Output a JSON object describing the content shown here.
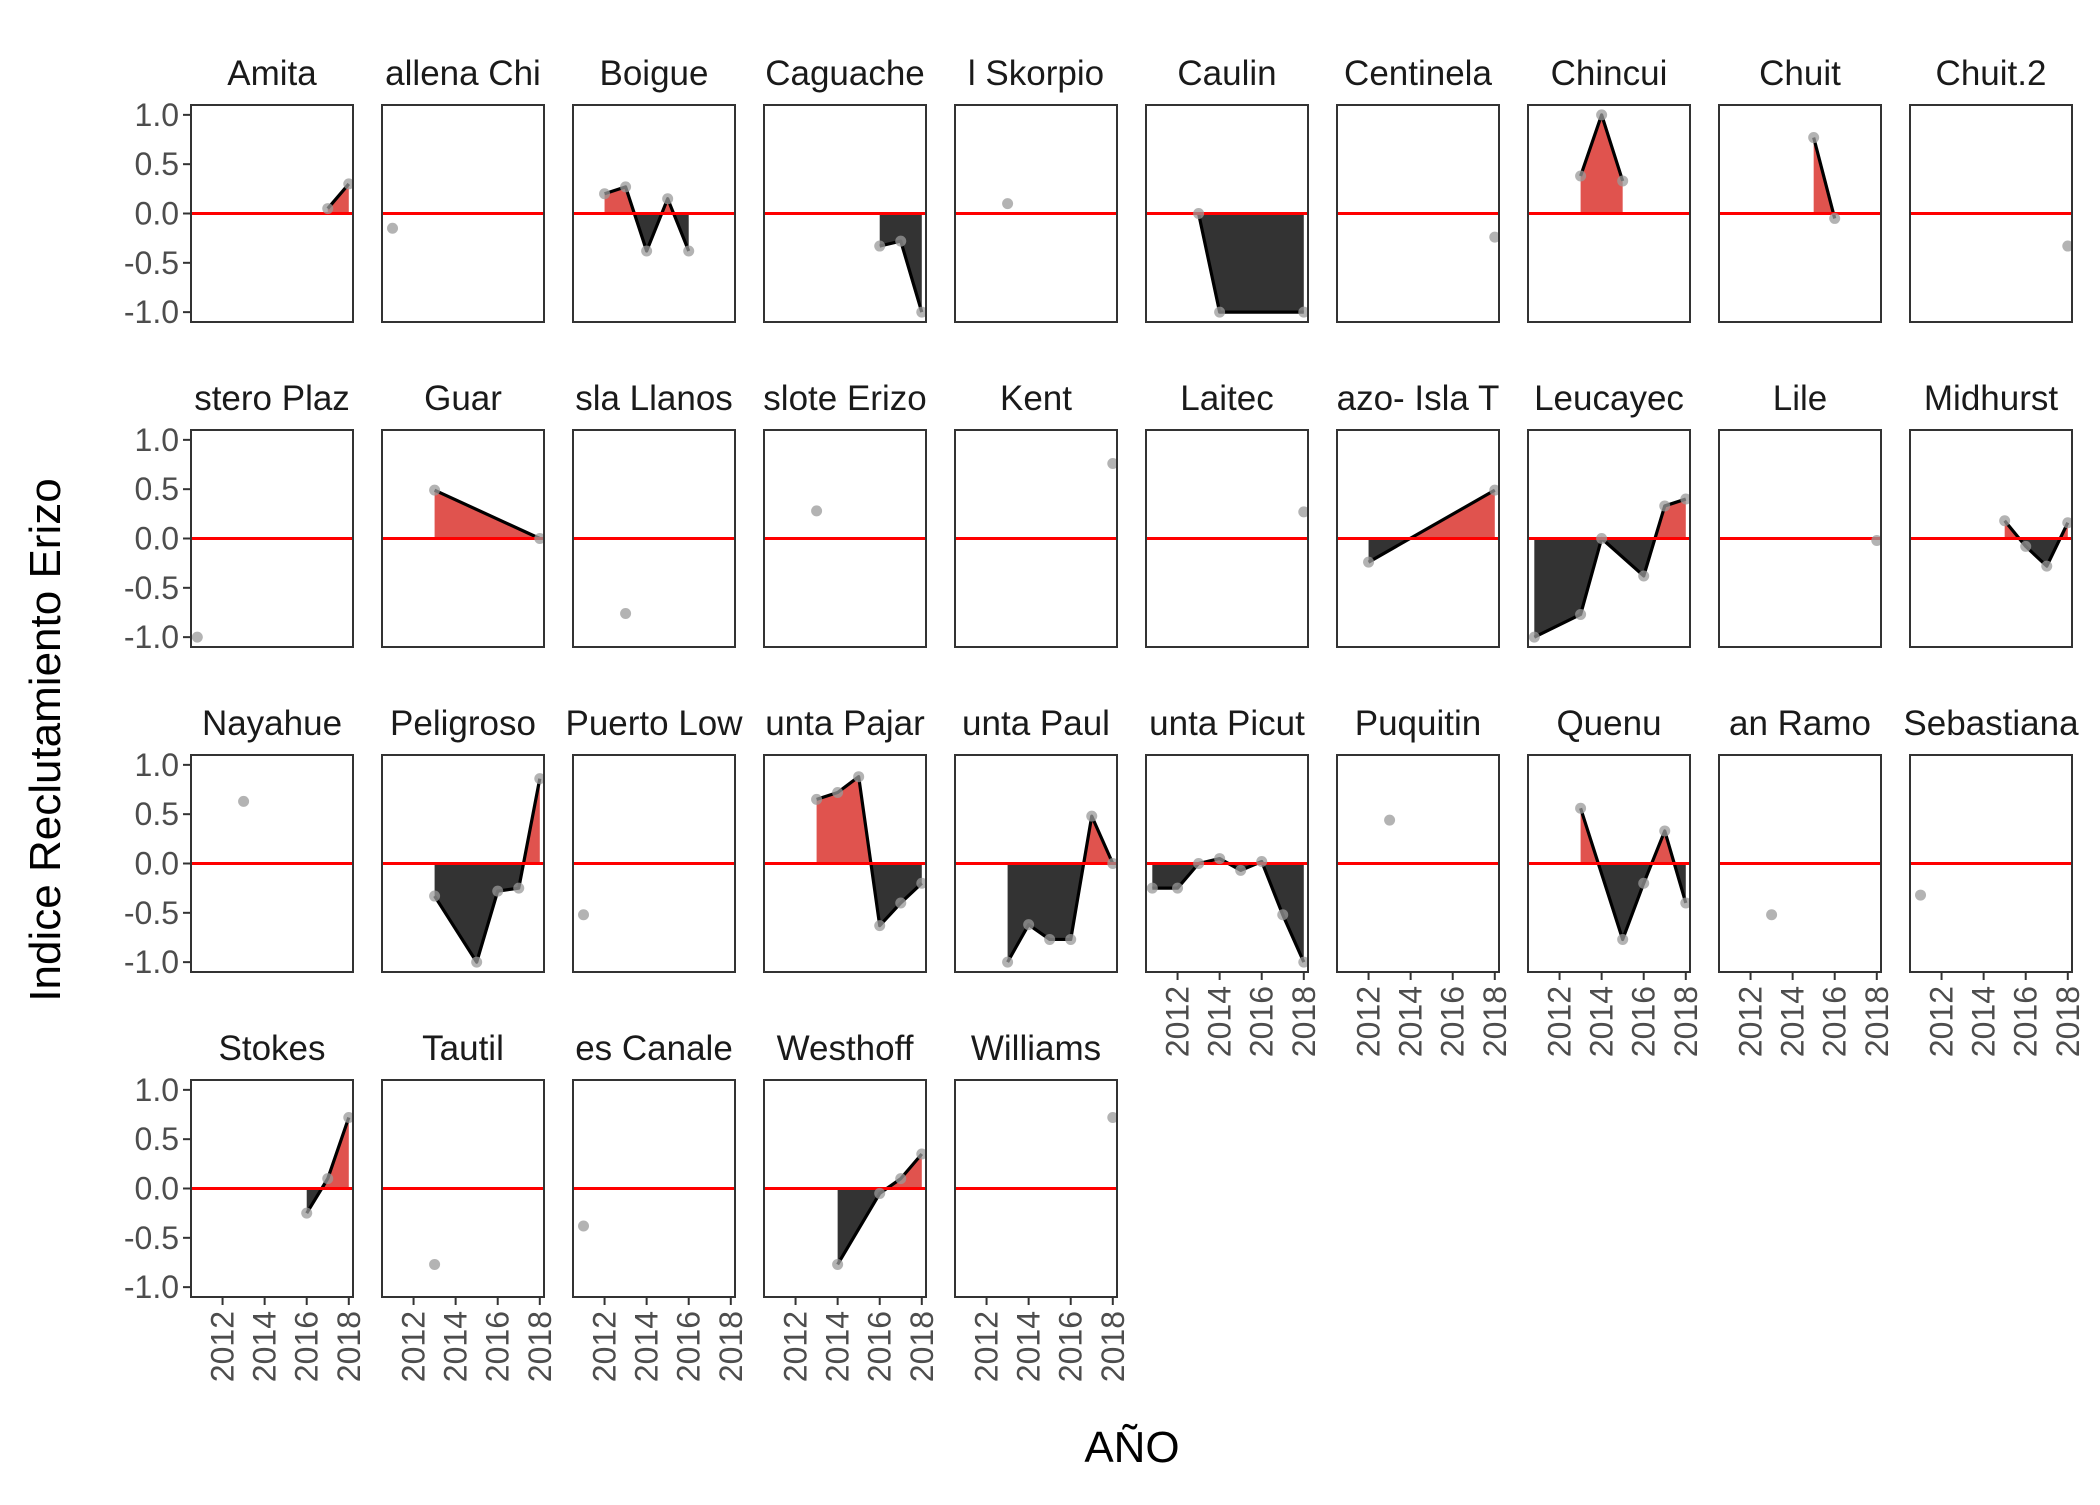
{
  "chart_data": {
    "type": "area",
    "facet_layout": {
      "ncol": 10,
      "nrow": 4,
      "scales": "fixed"
    },
    "xlabel": "AÑO",
    "ylabel": "Indice Reclutamiento Erizo",
    "xlim": [
      2010.5,
      2018.2
    ],
    "ylim": [
      -1.1,
      1.1
    ],
    "x_ticks": [
      "2012",
      "2014",
      "2016",
      "2018"
    ],
    "x_tick_values": [
      2012,
      2014,
      2016,
      2018
    ],
    "y_ticks": [
      "1.0",
      "0.5",
      "0.0",
      "-0.5",
      "-1.0"
    ],
    "y_tick_values": [
      1.0,
      0.5,
      0.0,
      -0.5,
      -1.0
    ],
    "colors": {
      "positive_fill": "#e0534e",
      "negative_fill": "#333333",
      "zero_line": "#ff0000",
      "series_line": "#000000",
      "points": "#999999",
      "panel_border": "#333333"
    },
    "panels": [
      {
        "title": "Amita",
        "x": [
          2017,
          2018
        ],
        "y": [
          0.05,
          0.3
        ]
      },
      {
        "title": "allena Chi",
        "x": [
          2011
        ],
        "y": [
          -0.15
        ]
      },
      {
        "title": "Boigue",
        "x": [
          2012,
          2013,
          2014,
          2015,
          2016
        ],
        "y": [
          0.2,
          0.27,
          -0.38,
          0.15,
          -0.38
        ]
      },
      {
        "title": "Caguache",
        "x": [
          2016,
          2017,
          2018
        ],
        "y": [
          -0.33,
          -0.28,
          -1.0
        ]
      },
      {
        "title": "l Skorpio",
        "x": [
          2013
        ],
        "y": [
          0.1
        ]
      },
      {
        "title": "Caulin",
        "x": [
          2013,
          2014,
          2018
        ],
        "y": [
          0.0,
          -1.0,
          -1.0
        ]
      },
      {
        "title": "Centinela",
        "x": [
          2018
        ],
        "y": [
          -0.24
        ]
      },
      {
        "title": "Chincui",
        "x": [
          2013,
          2014,
          2015
        ],
        "y": [
          0.38,
          1.0,
          0.33
        ]
      },
      {
        "title": "Chuit",
        "x": [
          2015,
          2016
        ],
        "y": [
          0.77,
          -0.05
        ]
      },
      {
        "title": "Chuit.2",
        "x": [
          2018
        ],
        "y": [
          -0.33
        ]
      },
      {
        "title": "stero Plaz",
        "x": [
          2010.8
        ],
        "y": [
          -1.0
        ]
      },
      {
        "title": "Guar",
        "x": [
          2013,
          2018
        ],
        "y": [
          0.49,
          0.0
        ]
      },
      {
        "title": "sla Llanos",
        "x": [
          2013
        ],
        "y": [
          -0.76
        ]
      },
      {
        "title": "slote Erizo",
        "x": [
          2013
        ],
        "y": [
          0.28
        ]
      },
      {
        "title": "Kent",
        "x": [
          2018
        ],
        "y": [
          0.76
        ]
      },
      {
        "title": "Laitec",
        "x": [
          2018
        ],
        "y": [
          0.27
        ]
      },
      {
        "title": "azo- Isla T",
        "x": [
          2012,
          2018
        ],
        "y": [
          -0.24,
          0.49
        ]
      },
      {
        "title": "Leucayec",
        "x": [
          2010.8,
          2013,
          2014,
          2016,
          2017,
          2018
        ],
        "y": [
          -1.0,
          -0.77,
          0.0,
          -0.38,
          0.33,
          0.4
        ]
      },
      {
        "title": "Lile",
        "x": [
          2018
        ],
        "y": [
          -0.02
        ]
      },
      {
        "title": "Midhurst",
        "x": [
          2015,
          2016,
          2017,
          2018
        ],
        "y": [
          0.18,
          -0.08,
          -0.28,
          0.16
        ]
      },
      {
        "title": "Nayahue",
        "x": [
          2013
        ],
        "y": [
          0.63
        ]
      },
      {
        "title": "Peligroso",
        "x": [
          2013,
          2015,
          2016,
          2017,
          2018
        ],
        "y": [
          -0.33,
          -1.0,
          -0.28,
          -0.25,
          0.86
        ]
      },
      {
        "title": "Puerto Low",
        "x": [
          2011
        ],
        "y": [
          -0.52
        ]
      },
      {
        "title": "unta Pajar",
        "x": [
          2013,
          2014,
          2015,
          2016,
          2017,
          2018
        ],
        "y": [
          0.65,
          0.72,
          0.88,
          -0.63,
          -0.4,
          -0.2
        ]
      },
      {
        "title": "unta Paul",
        "x": [
          2013,
          2014,
          2015,
          2016,
          2017,
          2018
        ],
        "y": [
          -1.0,
          -0.62,
          -0.77,
          -0.77,
          0.48,
          0.0
        ]
      },
      {
        "title": "unta Picut",
        "x": [
          2010.8,
          2012,
          2013,
          2014,
          2015,
          2016,
          2017,
          2018
        ],
        "y": [
          -0.25,
          -0.25,
          0.0,
          0.05,
          -0.07,
          0.02,
          -0.52,
          -1.0
        ]
      },
      {
        "title": "Puquitin",
        "x": [
          2013
        ],
        "y": [
          0.44
        ]
      },
      {
        "title": "Quenu",
        "x": [
          2013,
          2015,
          2016,
          2017,
          2018
        ],
        "y": [
          0.56,
          -0.77,
          -0.2,
          0.33,
          -0.4
        ]
      },
      {
        "title": "an Ramo",
        "x": [
          2013
        ],
        "y": [
          -0.52
        ]
      },
      {
        "title": "Sebastiana",
        "x": [
          2011
        ],
        "y": [
          -0.32
        ]
      },
      {
        "title": "Stokes",
        "x": [
          2016,
          2017,
          2018
        ],
        "y": [
          -0.25,
          0.1,
          0.72
        ]
      },
      {
        "title": "Tautil",
        "x": [
          2013
        ],
        "y": [
          -0.77
        ]
      },
      {
        "title": "es Canale",
        "x": [
          2011
        ],
        "y": [
          -0.38
        ]
      },
      {
        "title": "Westhoff",
        "x": [
          2014,
          2016,
          2017,
          2018
        ],
        "y": [
          -0.77,
          -0.05,
          0.1,
          0.35
        ]
      },
      {
        "title": "Williams",
        "x": [
          2018
        ],
        "y": [
          0.72
        ]
      }
    ]
  }
}
